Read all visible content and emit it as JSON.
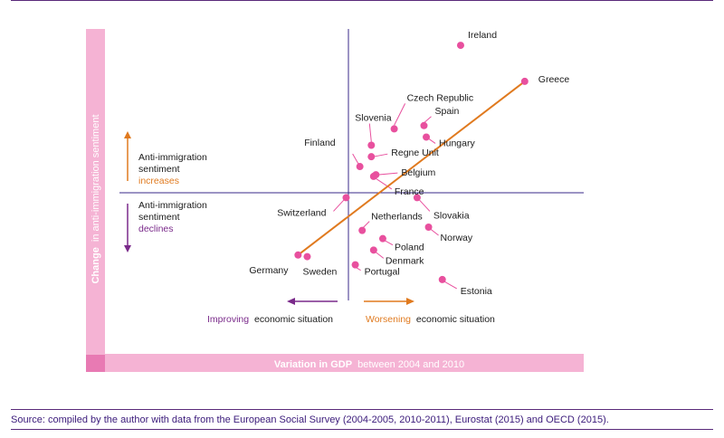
{
  "source": "Source: compiled by the author with data from the European Social Survey (2004-2005, 2010-2011), Eurostat (2015) and OECD (2015).",
  "annotations": {
    "up_line1": "Anti-immigration",
    "up_line2": "sentiment",
    "up_line3": "increases",
    "down_line1": "Anti-immigration",
    "down_line2": "sentiment",
    "down_line3": "declines",
    "left_colored": "Improving",
    "left_rest": "economic situation",
    "right_colored": "Worsening",
    "right_rest": "economic situation"
  },
  "axis_titles": {
    "x_bold": "Variation in GDP",
    "x_rest": "between 2004 and 2010",
    "y_bold": "Change",
    "y_rest": "in anti-immigration sentiment"
  },
  "colors": {
    "point": "#e8509e",
    "trend": "#e07a1f",
    "axes": "#3a2a8a",
    "band": "#f5b3d4",
    "accent_purple": "#7a2a8a"
  },
  "chart_data": {
    "type": "scatter",
    "xlabel": "Variation in GDP between 2004 and 2010",
    "ylabel": "Change in anti-immigration sentiment",
    "xlim": [
      -100,
      100
    ],
    "ylim": [
      -100,
      100
    ],
    "grid": false,
    "points": [
      {
        "label": "Ireland",
        "x": 49,
        "y": 90
      },
      {
        "label": "Greece",
        "x": 77,
        "y": 68
      },
      {
        "label": "Czech Republic",
        "x": 20,
        "y": 39
      },
      {
        "label": "Spain",
        "x": 33,
        "y": 41
      },
      {
        "label": "Hungary",
        "x": 34,
        "y": 34
      },
      {
        "label": "Slovenia",
        "x": 10,
        "y": 29
      },
      {
        "label": "Regne Unit",
        "x": 10,
        "y": 22
      },
      {
        "label": "Finland",
        "x": 5,
        "y": 16
      },
      {
        "label": "Belgium",
        "x": 12,
        "y": 11
      },
      {
        "label": "France",
        "x": 11,
        "y": 10
      },
      {
        "label": "Switzerland",
        "x": -1,
        "y": -3
      },
      {
        "label": "Slovakia",
        "x": 30,
        "y": -3
      },
      {
        "label": "Netherlands",
        "x": 6,
        "y": -23
      },
      {
        "label": "Norway",
        "x": 35,
        "y": -21
      },
      {
        "label": "Poland",
        "x": 15,
        "y": -28
      },
      {
        "label": "Denmark",
        "x": 11,
        "y": -35
      },
      {
        "label": "Portugal",
        "x": 3,
        "y": -44
      },
      {
        "label": "Germany",
        "x": -22,
        "y": -38
      },
      {
        "label": "Sweden",
        "x": -18,
        "y": -39
      },
      {
        "label": "Estonia",
        "x": 41,
        "y": -53
      }
    ],
    "trendline": {
      "x": [
        -22,
        77
      ],
      "y": [
        -38,
        68
      ]
    }
  }
}
